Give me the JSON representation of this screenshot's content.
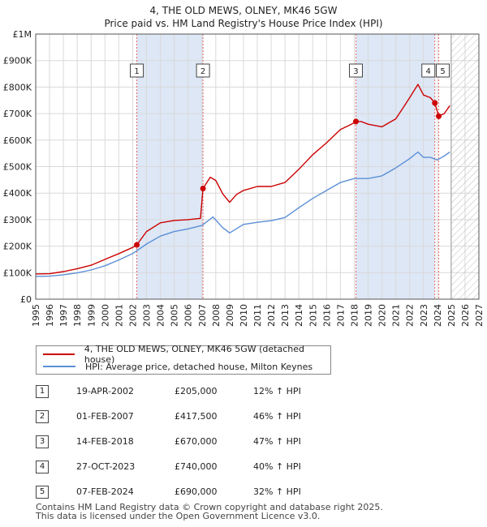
{
  "title": "4, THE OLD MEWS, OLNEY, MK46 5GW",
  "subtitle": "Price paid vs. HM Land Registry's House Price Index (HPI)",
  "colors": {
    "property": "#cc0000",
    "hpi": "#5b8fd6",
    "shade": "#dde7f6",
    "grid": "#d9d9d9",
    "marker_line": "#e06666"
  },
  "legend": {
    "property_label": "4, THE OLD MEWS, OLNEY, MK46 5GW (detached house)",
    "hpi_label": "HPI: Average price, detached house, Milton Keynes"
  },
  "sales": [
    {
      "num": "1",
      "date": "19-APR-2002",
      "price": "£205,000",
      "hpi": "12% ↑ HPI"
    },
    {
      "num": "2",
      "date": "01-FEB-2007",
      "price": "£417,500",
      "hpi": "46% ↑ HPI"
    },
    {
      "num": "3",
      "date": "14-FEB-2018",
      "price": "£670,000",
      "hpi": "47% ↑ HPI"
    },
    {
      "num": "4",
      "date": "27-OCT-2023",
      "price": "£740,000",
      "hpi": "40% ↑ HPI"
    },
    {
      "num": "5",
      "date": "07-FEB-2024",
      "price": "£690,000",
      "hpi": "32% ↑ HPI"
    }
  ],
  "footer": {
    "line1": "Contains HM Land Registry data © Crown copyright and database right 2025.",
    "line2": "This data is licensed under the Open Government Licence v3.0."
  },
  "chart_data": {
    "type": "line",
    "title": "4, THE OLD MEWS, OLNEY, MK46 5GW",
    "subtitle": "Price paid vs. HM Land Registry's House Price Index (HPI)",
    "xlim": [
      1995,
      2027
    ],
    "ylim": [
      0,
      1000000
    ],
    "x_ticks": [
      1995,
      1996,
      1997,
      1998,
      1999,
      2000,
      2001,
      2002,
      2003,
      2004,
      2005,
      2006,
      2007,
      2008,
      2009,
      2010,
      2011,
      2012,
      2013,
      2014,
      2015,
      2016,
      2017,
      2018,
      2019,
      2020,
      2021,
      2022,
      2023,
      2024,
      2025,
      2026,
      2027
    ],
    "y_ticks": [
      {
        "value": 0,
        "label": "£0"
      },
      {
        "value": 100000,
        "label": "£100K"
      },
      {
        "value": 200000,
        "label": "£200K"
      },
      {
        "value": 300000,
        "label": "£300K"
      },
      {
        "value": 400000,
        "label": "£400K"
      },
      {
        "value": 500000,
        "label": "£500K"
      },
      {
        "value": 600000,
        "label": "£600K"
      },
      {
        "value": 700000,
        "label": "£700K"
      },
      {
        "value": 800000,
        "label": "£800K"
      },
      {
        "value": 900000,
        "label": "£900K"
      },
      {
        "value": 1000000,
        "label": "£1M"
      }
    ],
    "hatch_from": 2025.0,
    "shaded_ranges": [
      [
        2002.3,
        2007.08
      ],
      [
        2018.12,
        2023.82
      ]
    ],
    "transactions": [
      {
        "label": "1",
        "x": 2002.3,
        "y": 205000
      },
      {
        "label": "2",
        "x": 2007.08,
        "y": 417500
      },
      {
        "label": "3",
        "x": 2018.12,
        "y": 670000
      },
      {
        "label": "4",
        "x": 2023.82,
        "y": 740000
      },
      {
        "label": "5",
        "x": 2024.1,
        "y": 690000
      }
    ],
    "series": [
      {
        "name": "4, THE OLD MEWS, OLNEY, MK46 5GW (detached house)",
        "color": "#cc0000",
        "x": [
          1995,
          1996,
          1997,
          1998,
          1999,
          2000,
          2001,
          2002,
          2002.3,
          2003,
          2004,
          2005,
          2006,
          2006.9,
          2007.08,
          2007.6,
          2008,
          2008.5,
          2009,
          2009.5,
          2010,
          2011,
          2012,
          2013,
          2014,
          2015,
          2016,
          2017,
          2017.8,
          2018.12,
          2018.5,
          2019,
          2020,
          2021,
          2021.5,
          2022,
          2022.6,
          2023,
          2023.5,
          2023.82,
          2024.1,
          2024.5,
          2024.9
        ],
        "y": [
          95000,
          96000,
          104000,
          115000,
          128000,
          150000,
          172000,
          195000,
          205000,
          255000,
          288000,
          297000,
          300000,
          305000,
          417500,
          460000,
          448000,
          398000,
          365000,
          395000,
          410000,
          425000,
          425000,
          440000,
          490000,
          545000,
          590000,
          640000,
          660000,
          670000,
          670000,
          660000,
          650000,
          680000,
          720000,
          760000,
          810000,
          770000,
          760000,
          740000,
          690000,
          700000,
          730000
        ]
      },
      {
        "name": "HPI: Average price, detached house, Milton Keynes",
        "color": "#5b8fd6",
        "x": [
          1995,
          1996,
          1997,
          1998,
          1999,
          2000,
          2001,
          2002,
          2003,
          2004,
          2005,
          2006,
          2007,
          2007.8,
          2008.5,
          2009,
          2010,
          2011,
          2012,
          2013,
          2014,
          2015,
          2016,
          2017,
          2018,
          2019,
          2020,
          2021,
          2022,
          2022.6,
          2023,
          2023.5,
          2024,
          2024.5,
          2024.9
        ],
        "y": [
          86000,
          87000,
          92000,
          99000,
          110000,
          126000,
          148000,
          172000,
          208000,
          238000,
          255000,
          265000,
          278000,
          310000,
          270000,
          250000,
          282000,
          290000,
          296000,
          308000,
          345000,
          380000,
          410000,
          440000,
          455000,
          455000,
          465000,
          495000,
          530000,
          555000,
          535000,
          535000,
          525000,
          540000,
          555000
        ]
      }
    ],
    "xlabel": "",
    "ylabel": ""
  }
}
